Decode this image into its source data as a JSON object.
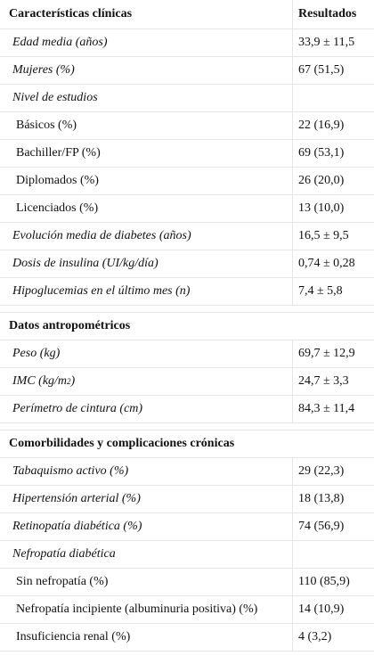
{
  "header": {
    "col1": "Características clínicas",
    "col2": "Resultados"
  },
  "rows1": [
    {
      "label": "Edad media (años)",
      "value": "33,9 ± 11,5",
      "style": "it"
    },
    {
      "label": "Mujeres (%)",
      "value": "67 (51,5)",
      "style": "it"
    },
    {
      "label": "Nivel de estudios",
      "value": "",
      "style": "it"
    },
    {
      "label": "Básicos (%)",
      "value": "22 (16,9)",
      "style": "sub"
    },
    {
      "label": "Bachiller/FP (%)",
      "value": "69 (53,1)",
      "style": "sub"
    },
    {
      "label": "Diplomados (%)",
      "value": "26 (20,0)",
      "style": "sub"
    },
    {
      "label": "Licenciados (%)",
      "value": "13 (10,0)",
      "style": "sub"
    },
    {
      "label": "Evolución media de diabetes (años)",
      "value": "16,5 ± 9,5",
      "style": "it"
    },
    {
      "label": "Dosis de insulina (UI/kg/día)",
      "value": "0,74 ± 0,28",
      "style": "it"
    },
    {
      "label": "Hipoglucemias en el último mes (n)",
      "value": "7,4 ± 5,8",
      "style": "it"
    }
  ],
  "section2": "Datos antropométricos",
  "rows2": [
    {
      "label": "Peso (kg)",
      "value": "69,7 ± 12,9",
      "style": "it"
    },
    {
      "label": "IMC (kg/m",
      "sup": "2",
      "label_end": ")",
      "value": "24,7 ± 3,3",
      "style": "it"
    },
    {
      "label": "Perímetro de cintura (cm)",
      "value": "84,3 ± 11,4",
      "style": "it"
    }
  ],
  "section3": "Comorbilidades y complicaciones crónicas",
  "rows3": [
    {
      "label": "Tabaquismo activo (%)",
      "value": "29 (22,3)",
      "style": "it"
    },
    {
      "label": "Hipertensión arterial (%)",
      "value": "18 (13,8)",
      "style": "it"
    },
    {
      "label": "Retinopatía diabética (%)",
      "value": "74 (56,9)",
      "style": "it"
    },
    {
      "label": "Nefropatía diabética",
      "value": "",
      "style": "it"
    },
    {
      "label": "Sin nefropatía (%)",
      "value": "110 (85,9)",
      "style": "sub"
    },
    {
      "label": "Nefropatía incipiente (albuminuria positiva) (%)",
      "value": "14 (10,9)",
      "style": "sub"
    },
    {
      "label": "Insuficiencia renal (%)",
      "value": "4 (3,2)",
      "style": "sub"
    }
  ]
}
